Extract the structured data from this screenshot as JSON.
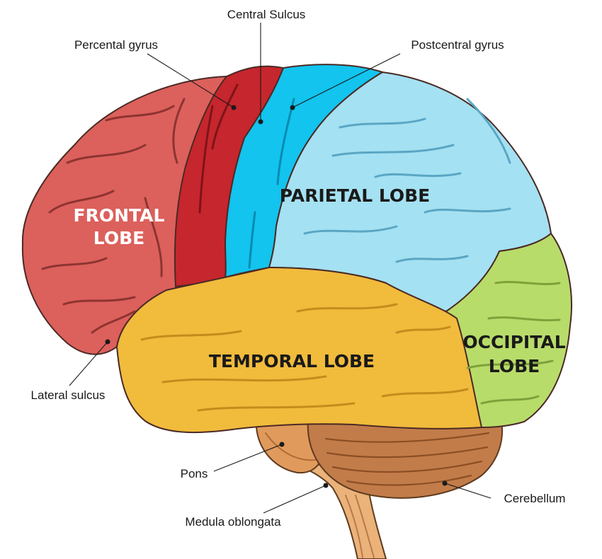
{
  "labels": {
    "central_sulcus": "Central Sulcus",
    "precentral_gyrus": "Percental gyrus",
    "postcentral_gyrus": "Postcentral gyrus",
    "lateral_sulcus": "Lateral sulcus",
    "pons": "Pons",
    "medulla": "Medula oblongata",
    "cerebellum": "Cerebellum"
  },
  "lobes": {
    "frontal_line1": "FRONTAL",
    "frontal_line2": "LOBE",
    "parietal": "PARIETAL LOBE",
    "temporal": "TEMPORAL LOBE",
    "occipital_line1": "OCCIPITAL",
    "occipital_line2": "LOBE"
  },
  "colors": {
    "frontal": "#dc605c",
    "precentral": "#c6262d",
    "postcentral": "#12c4ee",
    "parietal": "#a4e1f2",
    "occipital": "#b8dc6a",
    "temporal": "#f1bb3c",
    "cerebellum": "#c07a48",
    "brainstem": "#e8a868"
  }
}
